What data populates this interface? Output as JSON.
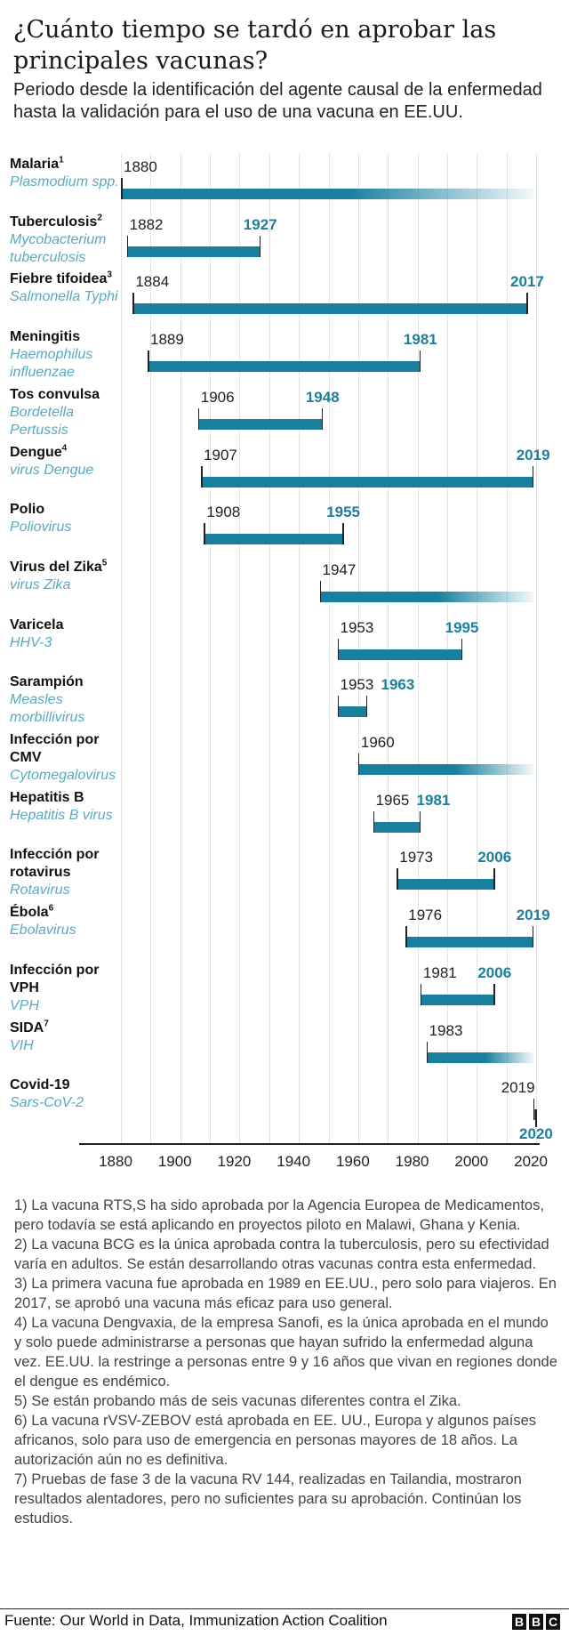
{
  "header": {
    "title": "¿Cuánto tiempo se tardó en aprobar las principales vacunas?",
    "subtitle": "Periodo desde la identificación del agente causal de la enfermedad hasta la validación para el uso de una vacuna en EE.UU."
  },
  "chart_data": {
    "type": "bar",
    "subtype": "horizontal range (timeline)",
    "xlim": [
      1880,
      2020
    ],
    "x_ticks": [
      "1880",
      "1900",
      "1920",
      "1940",
      "1960",
      "1980",
      "2000",
      "2020"
    ],
    "grid": "vertical dotted every 10 years",
    "colors": {
      "bar": "#187f9d",
      "end_label": "#1d7f9c",
      "pathogen": "#5aa9c2"
    },
    "rows": [
      {
        "name": "Malaria",
        "note": "1",
        "pathogen": "Plasmodium spp.",
        "start": 1880,
        "end": null,
        "ongoing": true
      },
      {
        "name": "Tuberculosis",
        "note": "2",
        "pathogen": "Mycobacterium tuberculosis",
        "start": 1882,
        "end": 1927
      },
      {
        "name": "Fiebre tifoidea",
        "note": "3",
        "pathogen": "Salmonella Typhi",
        "start": 1884,
        "end": 2017
      },
      {
        "name": "Meningitis",
        "note": "",
        "pathogen": "Haemophilus influenzae",
        "start": 1889,
        "end": 1981
      },
      {
        "name": "Tos convulsa",
        "note": "",
        "pathogen": "Bordetella Pertussis",
        "start": 1906,
        "end": 1948
      },
      {
        "name": "Dengue",
        "note": "4",
        "pathogen": "virus Dengue",
        "start": 1907,
        "end": 2019
      },
      {
        "name": "Polio",
        "note": "",
        "pathogen": "Poliovirus",
        "start": 1908,
        "end": 1955
      },
      {
        "name": "Virus del Zika",
        "note": "5",
        "pathogen": "virus Zika",
        "start": 1947,
        "end": null,
        "ongoing": true
      },
      {
        "name": "Varicela",
        "note": "",
        "pathogen": "HHV-3",
        "start": 1953,
        "end": 1995
      },
      {
        "name": "Sarampión",
        "note": "",
        "pathogen": "Measles morbillivirus",
        "start": 1953,
        "end": 1963
      },
      {
        "name": "Infección por CMV",
        "note": "",
        "pathogen": "Cytomegalovirus",
        "start": 1960,
        "end": null,
        "ongoing": true
      },
      {
        "name": "Hepatitis B",
        "note": "",
        "pathogen": "Hepatitis B virus",
        "start": 1965,
        "end": 1981
      },
      {
        "name": "Infección por rotavirus",
        "note": "",
        "pathogen": "Rotavirus",
        "start": 1973,
        "end": 2006
      },
      {
        "name": "Ébola",
        "note": "6",
        "pathogen": "Ebolavirus",
        "start": 1976,
        "end": 2019
      },
      {
        "name": "Infección por VPH",
        "note": "",
        "pathogen": "VPH",
        "start": 1981,
        "end": 2006
      },
      {
        "name": "SIDA",
        "note": "7",
        "pathogen": "VIH",
        "start": 1983,
        "end": null,
        "ongoing": true
      },
      {
        "name": "Covid-19",
        "note": "",
        "pathogen": "Sars-CoV-2",
        "start": 2019,
        "end": 2020,
        "end_label_below": true
      }
    ]
  },
  "footnotes": [
    "1) La vacuna RTS,S ha sido aprobada por la Agencia Europea de Medicamentos, pero todavía se está aplicando en proyectos piloto en Malawi, Ghana y Kenia.",
    "2) La vacuna BCG es la única aprobada contra la tuberculosis, pero su efectividad varía en adultos. Se están desarrollando otras vacunas contra esta enfermedad.",
    "3) La primera vacuna fue aprobada en 1989 en EE.UU., pero solo para viajeros. En 2017, se aprobó una vacuna más eficaz para uso general.",
    "4) La vacuna Dengvaxia, de la empresa Sanofi, es la única aprobada en el mundo y solo puede administrarse a personas que hayan sufrido la enfermedad alguna vez. EE.UU. la restringe a personas entre 9 y 16 años que vivan en regiones donde el dengue es endémico.",
    "5) Se están probando más de seis vacunas diferentes contra el Zika.",
    "6) La vacuna rVSV-ZEBOV está aprobada en EE. UU., Europa y algunos países africanos, solo para uso de emergencia en personas mayores de 18 años. La autorización aún no es definitiva.",
    "7) Pruebas de fase 3 de la vacuna RV 144, realizadas en Tailandia, mostraron resultados alentadores, pero no suficientes para su aprobación. Continúan los estudios."
  ],
  "footer": {
    "source": "Fuente: Our World in Data, Immunization Action Coalition",
    "logo": "BBC"
  }
}
